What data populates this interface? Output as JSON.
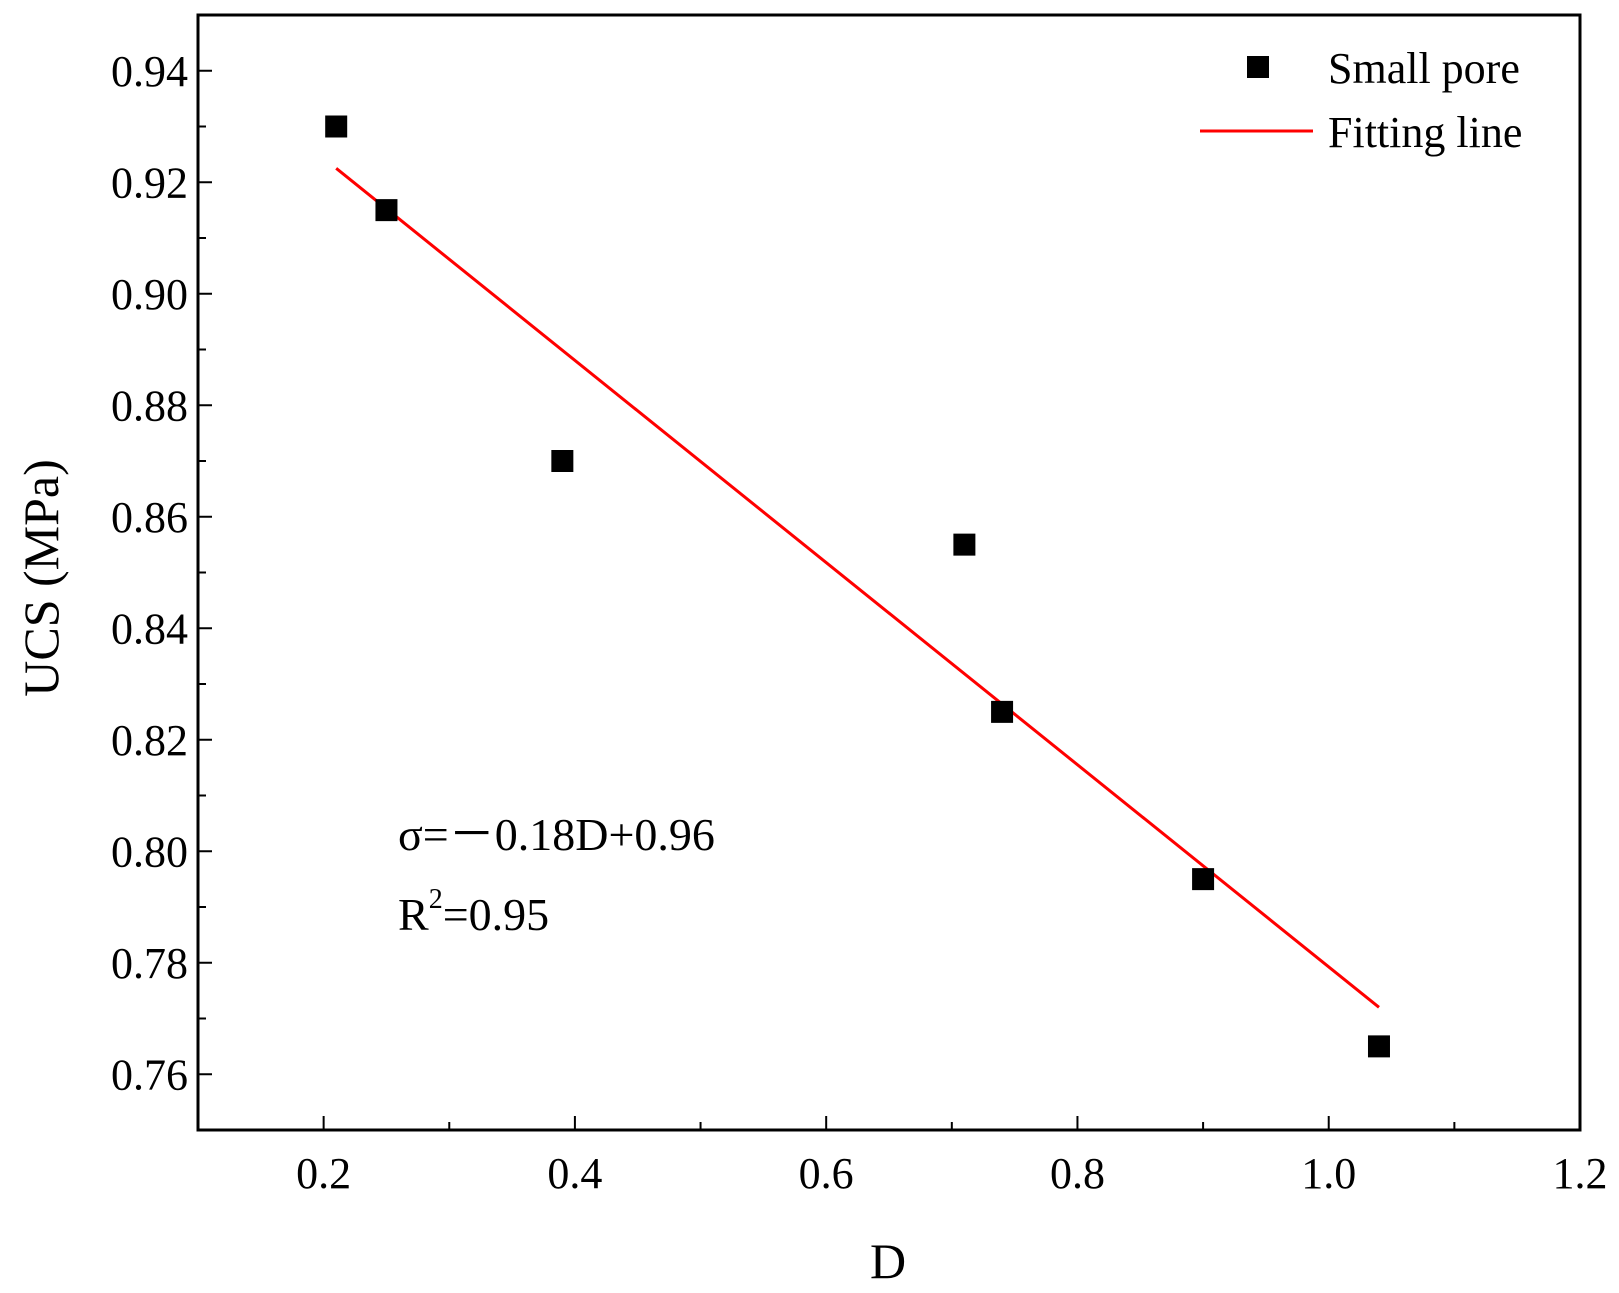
{
  "chart_data": {
    "type": "scatter",
    "xlabel": "D",
    "ylabel": "UCS (MPa)",
    "xlim": [
      0.1,
      1.2
    ],
    "ylim": [
      0.75,
      0.95
    ],
    "x_ticks": [
      "0.2",
      "0.4",
      "0.6",
      "0.8",
      "1.0",
      "1.2"
    ],
    "y_ticks": [
      "0.76",
      "0.78",
      "0.80",
      "0.82",
      "0.84",
      "0.86",
      "0.88",
      "0.90",
      "0.92",
      "0.94"
    ],
    "series": [
      {
        "name": "Small pore",
        "kind": "scatter",
        "color": "#000000",
        "points": [
          {
            "x": 0.21,
            "y": 0.93
          },
          {
            "x": 0.25,
            "y": 0.915
          },
          {
            "x": 0.39,
            "y": 0.87
          },
          {
            "x": 0.71,
            "y": 0.855
          },
          {
            "x": 0.74,
            "y": 0.825
          },
          {
            "x": 0.9,
            "y": 0.795
          },
          {
            "x": 1.04,
            "y": 0.765
          }
        ]
      },
      {
        "name": "Fitting line",
        "kind": "line",
        "color": "#ff0000",
        "points": [
          {
            "x": 0.21,
            "y": 0.9225
          },
          {
            "x": 1.04,
            "y": 0.772
          }
        ]
      }
    ],
    "legend_position": "top-right",
    "annotation": {
      "equation": "σ=－0.18D+0.96",
      "r2_prefix": "R",
      "r2_sup": "2",
      "r2_suffix": "=0.95"
    }
  }
}
